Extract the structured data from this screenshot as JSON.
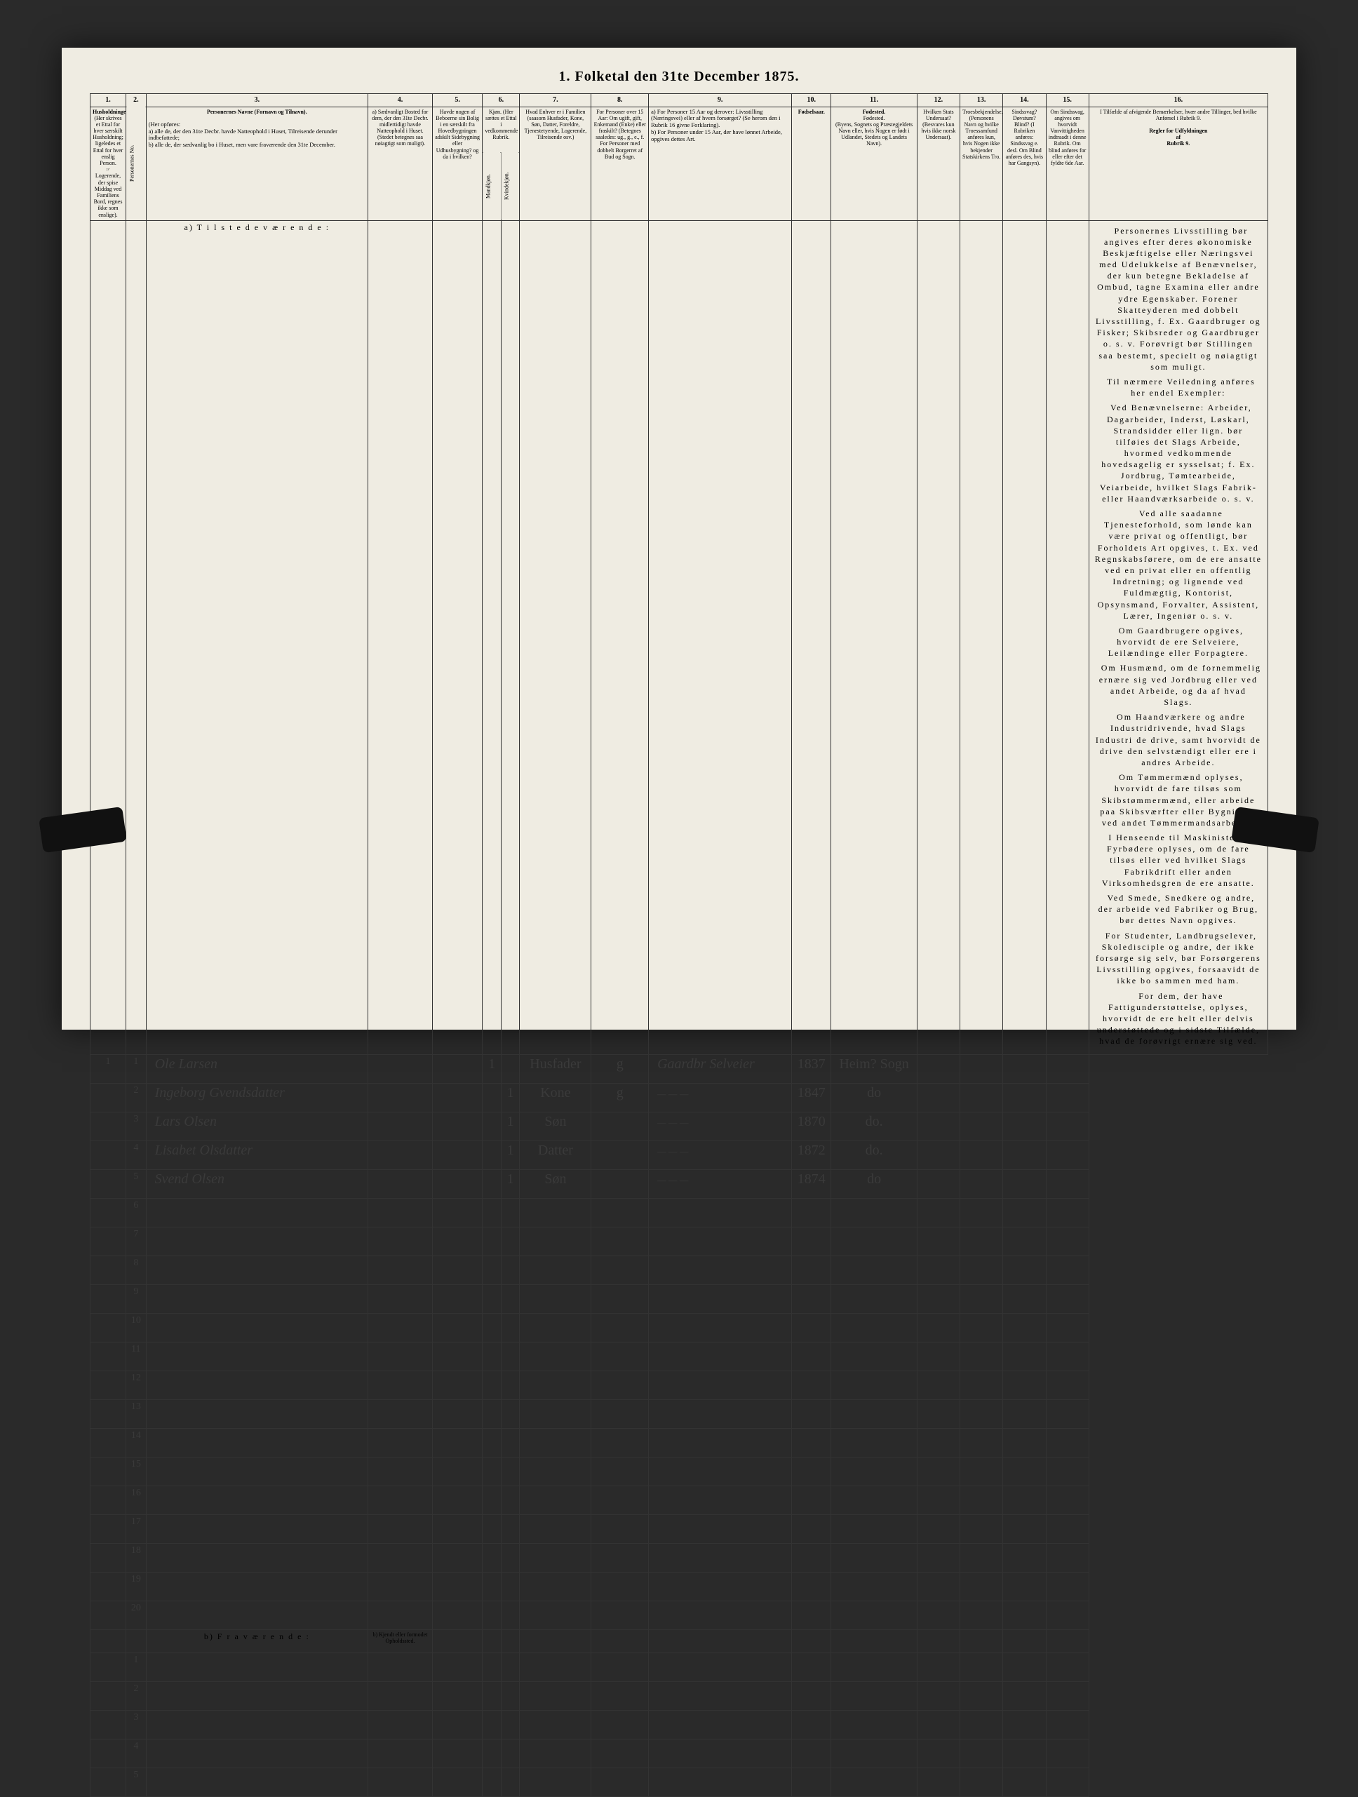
{
  "title": "1.  Folketal den 31te December 1875.",
  "columns": {
    "nums": [
      "1.",
      "2.",
      "3.",
      "4.",
      "5.",
      "6.",
      "7.",
      "8.",
      "9.",
      "10.",
      "11.",
      "12.",
      "13.",
      "14.",
      "15.",
      "16."
    ],
    "h1": "Husholdninger.",
    "h1_sub": "(Her skrives et Ettal for hver særskilt Husholdning; ligeledes et Ettal for hver enslig Person.",
    "h1_sub2": "Logerende, der spise Middag ved Familiens Bord, regnes ikke som enslige).",
    "h2": "Personernes No.",
    "h3": "Personernes Navne (Fornavn og Tilnavn).",
    "h3_sub": "(Her opføres:\na) alle de, der den 31te Decbr. havde Natteophold i Huset, Tilreisende derunder indbefattede;\nb) alle de, der sædvanlig bo i Huset, men vare fraværende den 31te December.",
    "h4": "a) Sædvanligt Bosted for dem, der den 31te Decbr. midlertidigt havde Natteophold i Huset. (Stedet betegnes saa nøiagtigt som muligt).",
    "h5": "Havde nogen af Beboerne sin Bolig i en særskilt fra Hovedbygningen adskilt Sidebygning eller Udhusbygning? og da i hvilken?",
    "h6": "Kjøn. (Her sættes et Ettal i vedkommende Rubrik.",
    "h6a": "Mandkjøn.",
    "h6b": "Kvindekjøn.",
    "h7": "Hvad Enhver er i Familien (saasom Husfader, Kone, Søn, Datter, Foreldre, Tjenestetyende, Logerende, Tilreisende osv.)",
    "h8": "For Personer over 15 Aar: Om ugift, gift, Enkemand (Enke) eller fraskilt? (Betegnes saaledes: ug., g., e., f.",
    "h8_sub": "For Personer med dobbelt Borgerret af Bud og Sogn.",
    "h9": "a) For Personer 15 Aar og derover: Livsstilling (Næringsvei) eller af hvem forsørget? (Se herom den i Rubrik 16 givne Forklaring).\nb) For Personer under 15 Aar, der have lønnet Arbeide, opgives dettes Art.",
    "h10": "Fødselsaar.",
    "h11": "Fødested.\n(Byens, Sognets og Præstegjeldets Navn eller, hvis Nogen er født i Udlandet, Stedets og Landets Navn).",
    "h12": "Hvilken Stats Undersaat? (Besvares kun hvis ikke norsk Undersaat).",
    "h13": "Troesbekjendelse. (Personens Navn og hvilke Troessamfund anføres kun, hvis Nogen ikke bekjender Statskirkens Tro.",
    "h14": "Sindssvag? Døvstum? Blind? (I Rubriken anføres: Sindssvag e. desl. Om Blind anføres des, hvis har Gangsyn).",
    "h15": "Om Sindssvag, angives om hvorvidt Vanvittigheden indtraadt i denne Rubrik. Om blind anføres for eller efter det fyldte 6de Aar.",
    "h16": "I Tilfælde af afvigende Bemærkelser, hvær andre Tillinger, bed hvilke Anførsel i Rubrik 9.",
    "rules_title": "Regler for Udfyldningen\naf\nRubrik 9."
  },
  "section_a": "a)  T i l s t e d e v æ r e n d e :",
  "section_b": "b)  F r a v æ r e n d e :",
  "section_b_col4": "b) Kjendt eller formodet Opholdssted.",
  "entries": [
    {
      "hh": "1",
      "no": "1",
      "name": "Ole Larsen",
      "m": "1",
      "k": "",
      "fam": "Husfader",
      "civ": "g",
      "occ": "Gaardbr Selveier",
      "year": "1837",
      "place": "Heim? Sogn"
    },
    {
      "hh": "",
      "no": "2",
      "name": "Ingeborg Gvendsdatter",
      "m": "",
      "k": "1",
      "fam": "Kone",
      "civ": "g",
      "occ": "",
      "year": "1847",
      "place": "do"
    },
    {
      "hh": "",
      "no": "3",
      "name": "Lars Olsen",
      "m": "",
      "k": "1",
      "fam": "Søn",
      "civ": "",
      "occ": "",
      "year": "1870",
      "place": "do."
    },
    {
      "hh": "",
      "no": "4",
      "name": "Lisabet Olsdatter",
      "m": "",
      "k": "1",
      "fam": "Datter",
      "civ": "",
      "occ": "",
      "year": "1872",
      "place": "do."
    },
    {
      "hh": "",
      "no": "5",
      "name": "Svend Olsen",
      "m": "",
      "k": "1",
      "fam": "Søn",
      "civ": "",
      "occ": "",
      "year": "1874",
      "place": "do"
    }
  ],
  "empty_rows_a": [
    "6",
    "7",
    "8",
    "9",
    "10",
    "11",
    "12",
    "13",
    "14",
    "15",
    "16",
    "17",
    "18",
    "19",
    "20"
  ],
  "empty_rows_b": [
    "1",
    "2",
    "3",
    "4",
    "5"
  ],
  "rules_text": [
    "Personernes Livsstilling bør angives efter deres økonomiske Beskjæftigelse eller Næringsvei med Udelukkelse af Benævnelser, der kun betegne Bekladelse af Ombud, tagne Examina eller andre ydre Egenskaber. Forener Skatteyderen med dobbelt Livsstilling, f. Ex. Gaardbruger og Fisker; Skibsreder og Gaardbruger o. s. v. Forøvrigt bør Stillingen saa bestemt, specielt og nøiagtigt som muligt.",
    "Til nærmere Veiledning anføres her endel Exempler:",
    "Ved Benævnelserne: Arbeider, Dagarbeider, Inderst, Løskarl, Strandsidder eller lign. bør tilføies det Slags Arbeide, hvormed vedkommende hovedsagelig er sysselsat; f. Ex. Jordbrug, Tømtearbeide, Veiarbeide, hvilket Slags Fabrik- eller Haandværksarbeide o. s. v.",
    "Ved alle saadanne Tjenesteforhold, som lønde kan være privat og offentligt, bør Forholdets Art opgives, t. Ex. ved Regnskabsførere, om de ere ansatte ved en privat eller en offentlig Indretning; og lignende ved Fuldmægtig, Kontorist, Opsynsmand, Forvalter, Assistent, Lærer, Ingeniør o. s. v.",
    "Om Gaardbrugere opgives, hvorvidt de ere Selveiere, Leilændinge eller Forpagtere.",
    "Om Husmænd, om de fornemmelig ernære sig ved Jordbrug eller ved andet Arbeide, og da af hvad Slags.",
    "Om Haandværkere og andre Industridrivende, hvad Slags Industri de drive, samt hvorvidt de drive den selvstændigt eller ere i andres Arbeide.",
    "Om Tømmermænd oplyses, hvorvidt de fare tilsøs som Skibstømmermænd, eller arbeide paa Skibsværfter eller Bygninger ved andet Tømmermandsarbeide.",
    "I Henseende til Maskinister og Fyrbødere oplyses, om de fare tilsøs eller ved hvilket Slags Fabrikdrift eller anden Virksomhedsgren de ere ansatte.",
    "Ved Smede, Snedkere og andre, der arbeide ved Fabriker og Brug, bør dettes Navn opgives.",
    "For Studenter, Landbrugselever, Skoledisciple og andre, der ikke forsørge sig selv, bør Forsørgerens Livsstilling opgives, forsaavidt de ikke bo sammen med ham.",
    "For dem, der have Fattigunderstøttelse, oplyses, hvorvidt de ere helt eller delvis understøttede og i sidste Tilfælde, hvad de forøvrigt ernære sig ved."
  ]
}
